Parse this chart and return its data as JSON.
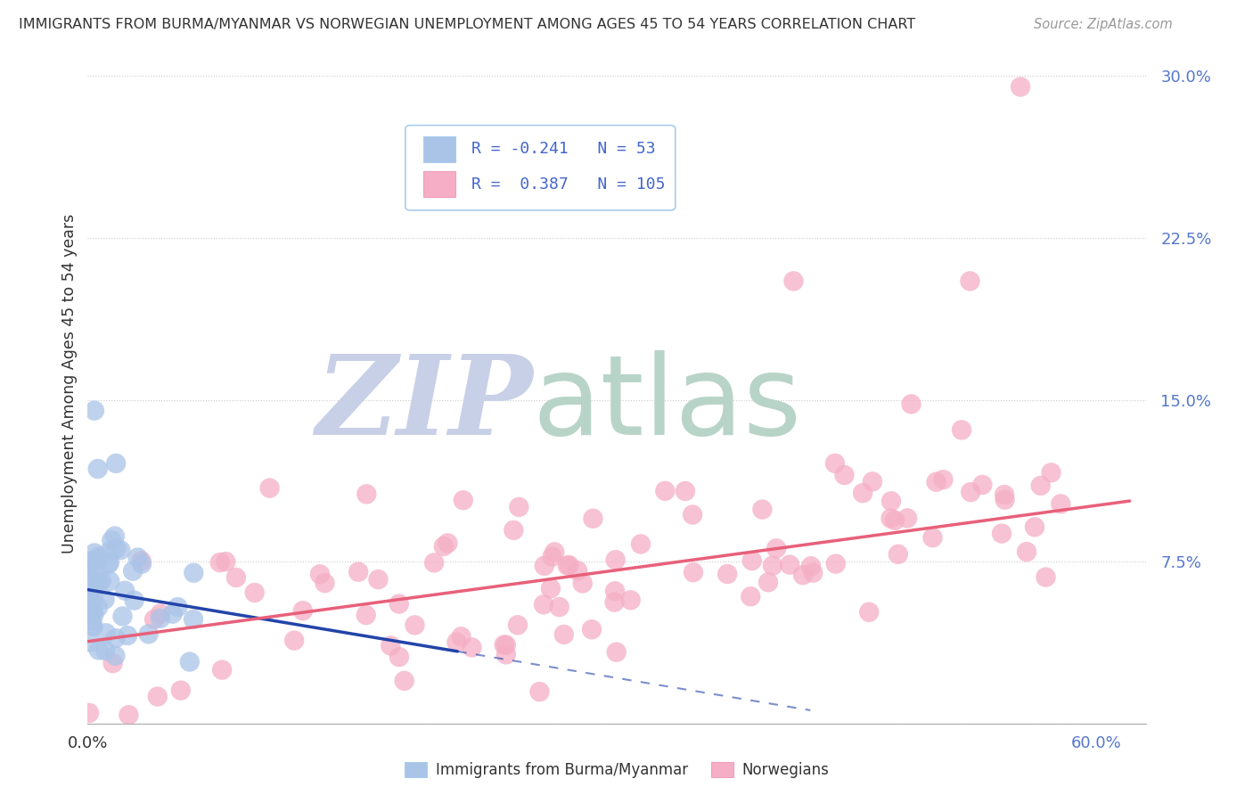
{
  "title": "IMMIGRANTS FROM BURMA/MYANMAR VS NORWEGIAN UNEMPLOYMENT AMONG AGES 45 TO 54 YEARS CORRELATION CHART",
  "source": "Source: ZipAtlas.com",
  "ylabel": "Unemployment Among Ages 45 to 54 years",
  "y_ticks": [
    0.0,
    0.075,
    0.15,
    0.225,
    0.3
  ],
  "y_tick_labels": [
    "",
    "7.5%",
    "15.0%",
    "22.5%",
    "30.0%"
  ],
  "xlim": [
    0.0,
    0.63
  ],
  "ylim": [
    0.0,
    0.315
  ],
  "blue_R": -0.241,
  "blue_N": 53,
  "pink_R": 0.387,
  "pink_N": 105,
  "blue_color": "#aac4e8",
  "pink_color": "#f5aec5",
  "blue_line_color": "#2244aa",
  "pink_line_color": "#e8607a",
  "watermark_zip": "ZIP",
  "watermark_atlas": "atlas",
  "watermark_color_zip": "#c8d0e8",
  "watermark_color_atlas": "#b8d4c8",
  "background_color": "#ffffff",
  "grid_color": "#cccccc",
  "legend_label_blue": "Immigrants from Burma/Myanmar",
  "legend_label_pink": "Norwegians",
  "blue_seed": 42,
  "pink_seed": 7,
  "blue_intercept": 0.062,
  "blue_slope": -0.13,
  "pink_intercept": 0.038,
  "pink_slope": 0.105
}
